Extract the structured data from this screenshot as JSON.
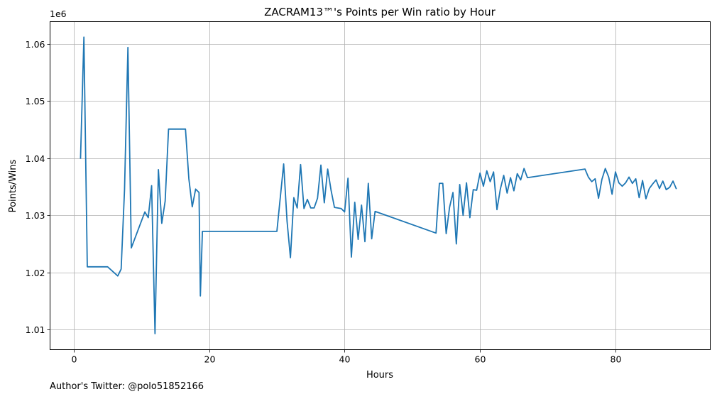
{
  "chart_data": {
    "type": "line",
    "title": "ZACRAM13™'s Points per Win ratio by Hour",
    "xlabel": "Hours",
    "ylabel": "Points/Wins",
    "y_offset_label": "1e6",
    "xlim": [
      -3.5,
      94
    ],
    "ylim": [
      1.0065,
      1.0639
    ],
    "x_ticks": [
      0,
      20,
      40,
      60,
      80
    ],
    "x_tick_labels": [
      "0",
      "20",
      "40",
      "60",
      "80"
    ],
    "y_ticks": [
      1.01,
      1.02,
      1.03,
      1.04,
      1.05,
      1.06
    ],
    "y_tick_labels": [
      "1.01",
      "1.02",
      "1.03",
      "1.04",
      "1.05",
      "1.06"
    ],
    "grid": true,
    "line_color": "#1f77b4",
    "series": [
      {
        "x": [
          1.0,
          1.5,
          2.0,
          5.0,
          6.5,
          7.0,
          7.5,
          8.0,
          8.5,
          10.5,
          11.0,
          11.5,
          12.0,
          12.5,
          13.0,
          13.5,
          14.0,
          14.5,
          16.5,
          17.0,
          17.5,
          18.0,
          18.5,
          18.7,
          19.0,
          30.0,
          31.0,
          31.5,
          32.0,
          32.5,
          33.0,
          33.5,
          34.0,
          34.5,
          35.0,
          35.5,
          36.0,
          36.5,
          37.0,
          37.5,
          38.0,
          38.5,
          39.5,
          40.0,
          40.5,
          41.0,
          41.5,
          42.0,
          42.5,
          43.0,
          43.5,
          44.0,
          44.5,
          53.5,
          54.0,
          54.5,
          55.0,
          55.5,
          56.0,
          56.5,
          57.0,
          57.5,
          58.0,
          58.5,
          59.0,
          59.5,
          60.0,
          60.5,
          61.0,
          61.5,
          62.0,
          62.5,
          63.0,
          63.5,
          64.0,
          64.5,
          65.0,
          65.5,
          66.0,
          66.5,
          67.0,
          75.5,
          76.0,
          76.5,
          77.0,
          77.5,
          78.0,
          78.5,
          79.0,
          79.5,
          80.0,
          80.5,
          81.0,
          81.5,
          82.0,
          82.5,
          83.0,
          83.5,
          84.0,
          84.5,
          85.0,
          85.5,
          86.0,
          86.5,
          87.0,
          87.5,
          88.0,
          88.5,
          89.0
        ],
        "y": [
          1.0399,
          1.0612,
          1.021,
          1.021,
          1.0194,
          1.0206,
          1.0345,
          1.0594,
          1.0243,
          1.0306,
          1.0296,
          1.0352,
          1.0093,
          1.038,
          1.0286,
          1.0325,
          1.0451,
          1.0451,
          1.0451,
          1.0364,
          1.0315,
          1.0346,
          1.034,
          1.0159,
          1.0272,
          1.0272,
          1.039,
          1.029,
          1.0226,
          1.0331,
          1.0313,
          1.0389,
          1.0312,
          1.0328,
          1.0313,
          1.0313,
          1.033,
          1.0388,
          1.0322,
          1.0381,
          1.0344,
          1.0314,
          1.0312,
          1.0306,
          1.0365,
          1.0227,
          1.0323,
          1.0258,
          1.0318,
          1.0254,
          1.0356,
          1.0259,
          1.0307,
          1.0269,
          1.0356,
          1.0356,
          1.0268,
          1.0314,
          1.034,
          1.025,
          1.0354,
          1.03,
          1.0357,
          1.0296,
          1.0345,
          1.0344,
          1.0374,
          1.0351,
          1.0378,
          1.0359,
          1.0376,
          1.031,
          1.0346,
          1.037,
          1.0339,
          1.0366,
          1.0343,
          1.0373,
          1.0362,
          1.0382,
          1.0366,
          1.0381,
          1.0367,
          1.0359,
          1.0364,
          1.033,
          1.0363,
          1.0382,
          1.0367,
          1.0337,
          1.0376,
          1.0357,
          1.0351,
          1.0357,
          1.0367,
          1.0356,
          1.0364,
          1.0331,
          1.0361,
          1.0329,
          1.0347,
          1.0355,
          1.0362,
          1.0347,
          1.036,
          1.0345,
          1.0349,
          1.036,
          1.0346
        ]
      }
    ]
  },
  "footer": {
    "credit": "Author's Twitter: @polo51852166"
  }
}
